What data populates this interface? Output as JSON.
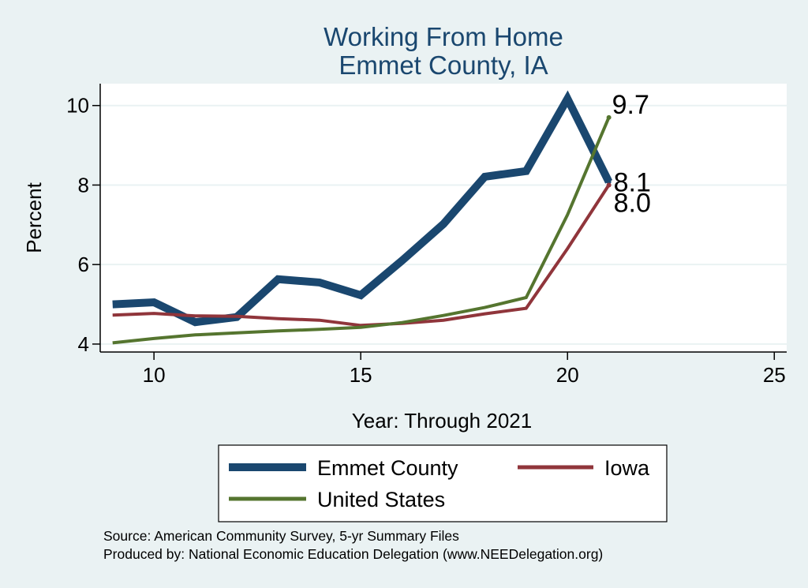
{
  "chart_data": {
    "type": "line",
    "title": "Working From Home",
    "subtitle": "Emmet County, IA",
    "xlabel": "Year: Through 2021",
    "ylabel": "Percent",
    "xlim": [
      8.7,
      25.3
    ],
    "ylim": [
      3.8,
      10.55
    ],
    "xticks": [
      "10",
      "15",
      "20",
      "25"
    ],
    "yticks": [
      "4",
      "6",
      "8",
      "10"
    ],
    "grid": true,
    "legend_position": "bottom",
    "series": [
      {
        "name": "Emmet County",
        "color": "#1a476f",
        "x": [
          9,
          10,
          11,
          12,
          13,
          14,
          15,
          16,
          17,
          18,
          19,
          20,
          21
        ],
        "values": [
          5.0,
          5.05,
          4.55,
          4.68,
          5.63,
          5.55,
          5.23,
          6.1,
          7.02,
          8.21,
          8.35,
          10.17,
          8.08
        ],
        "end_label": "8.1"
      },
      {
        "name": "Iowa",
        "color": "#90353b",
        "x": [
          9,
          10,
          11,
          12,
          13,
          14,
          15,
          16,
          17,
          18,
          19,
          20,
          21
        ],
        "values": [
          4.73,
          4.77,
          4.71,
          4.7,
          4.64,
          4.6,
          4.47,
          4.52,
          4.6,
          4.76,
          4.9,
          6.4,
          8.0
        ],
        "end_label": "8.0"
      },
      {
        "name": "United States",
        "color": "#55752f",
        "x": [
          9,
          10,
          11,
          12,
          13,
          14,
          15,
          16,
          17,
          18,
          19,
          20,
          21
        ],
        "values": [
          4.03,
          4.14,
          4.23,
          4.28,
          4.33,
          4.37,
          4.42,
          4.54,
          4.72,
          4.92,
          5.17,
          7.25,
          9.7
        ],
        "end_label": "9.7"
      }
    ],
    "notes": [
      "Source: American Community Survey, 5-yr Summary Files",
      "Produced by: National Economic Education Delegation (www.NEEDelegation.org)"
    ]
  }
}
